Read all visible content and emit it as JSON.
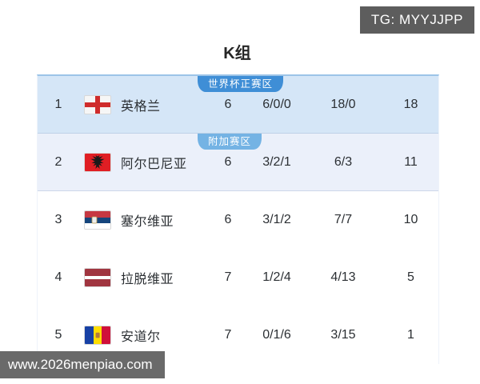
{
  "overlays": {
    "tg_badge": "TG: MYYJJPP",
    "watermark": "www.2026menpiao.com"
  },
  "group": {
    "title": "K组"
  },
  "standings": {
    "zone_badges": {
      "qualify": "世界杯正赛区",
      "playoff": "附加赛区"
    },
    "rows": [
      {
        "rank": "1",
        "team": "英格兰",
        "flag": "england-flag",
        "played": "6",
        "win_draw_loss": "6/0/0",
        "goals_for_against": "18/0",
        "points": "18",
        "zone": "qualify"
      },
      {
        "rank": "2",
        "team": "阿尔巴尼亚",
        "flag": "albania-flag",
        "played": "6",
        "win_draw_loss": "3/2/1",
        "goals_for_against": "6/3",
        "points": "11",
        "zone": "playoff"
      },
      {
        "rank": "3",
        "team": "塞尔维亚",
        "flag": "serbia-flag",
        "played": "6",
        "win_draw_loss": "3/1/2",
        "goals_for_against": "7/7",
        "points": "10",
        "zone": null
      },
      {
        "rank": "4",
        "team": "拉脱维亚",
        "flag": "latvia-flag",
        "played": "7",
        "win_draw_loss": "1/2/4",
        "goals_for_against": "4/13",
        "points": "5",
        "zone": null
      },
      {
        "rank": "5",
        "team": "安道尔",
        "flag": "andorra-flag",
        "played": "7",
        "win_draw_loss": "0/1/6",
        "goals_for_against": "3/15",
        "points": "1",
        "zone": null
      }
    ]
  },
  "colors": {
    "qualify_row_bg": "#d5e6f7",
    "playoff_row_bg": "#ebf0fa",
    "qualify_badge_bg": "#3f8ed6",
    "playoff_badge_bg": "#74b3e4",
    "overlay_bg": "#5d5d5d",
    "card_top_border": "#9cc4e8",
    "text": "#2b2f33"
  }
}
